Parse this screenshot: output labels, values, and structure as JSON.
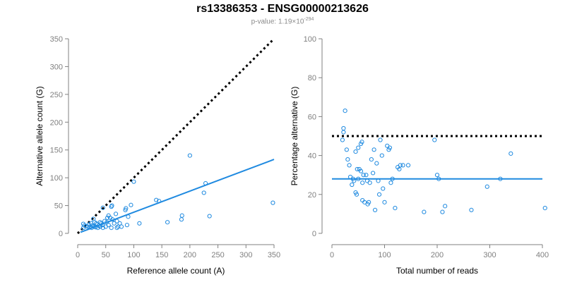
{
  "header": {
    "title": "rs13386353 - ENSG00000213626",
    "pvalue_prefix": "p-value: 1.19×10",
    "pvalue_exponent": "-294"
  },
  "colors": {
    "points": "#1f8ae0",
    "fit_line": "#1f8ae0",
    "reference_line": "#000000",
    "axis": "#808080"
  },
  "chart_data": [
    {
      "type": "scatter",
      "title": "",
      "xlabel": "Reference allele count (A)",
      "ylabel": "Alternative allele count (G)",
      "xlim": [
        0,
        350
      ],
      "ylim": [
        0,
        350
      ],
      "xticks": [
        0,
        50,
        100,
        150,
        200,
        250,
        300,
        350
      ],
      "yticks": [
        0,
        50,
        100,
        150,
        200,
        250,
        300,
        350
      ],
      "grid": false,
      "reference_line": {
        "style": "dotted",
        "from": [
          0,
          0
        ],
        "to": [
          350,
          350
        ]
      },
      "fit_line": {
        "from": [
          5,
          2
        ],
        "to": [
          350,
          133
        ]
      },
      "points": [
        [
          10,
          10
        ],
        [
          12,
          14
        ],
        [
          15,
          13
        ],
        [
          18,
          12
        ],
        [
          20,
          16
        ],
        [
          22,
          11
        ],
        [
          24,
          18
        ],
        [
          25,
          10
        ],
        [
          26,
          14
        ],
        [
          28,
          13
        ],
        [
          30,
          12
        ],
        [
          30,
          20
        ],
        [
          32,
          11
        ],
        [
          33,
          18
        ],
        [
          35,
          16
        ],
        [
          36,
          10
        ],
        [
          38,
          14
        ],
        [
          40,
          12
        ],
        [
          40,
          20
        ],
        [
          42,
          18
        ],
        [
          44,
          15
        ],
        [
          45,
          10
        ],
        [
          45,
          46
        ],
        [
          48,
          22
        ],
        [
          50,
          12
        ],
        [
          52,
          20
        ],
        [
          53,
          28
        ],
        [
          55,
          32
        ],
        [
          55,
          15
        ],
        [
          58,
          28
        ],
        [
          60,
          10
        ],
        [
          60,
          48
        ],
        [
          61,
          50
        ],
        [
          62,
          25
        ],
        [
          65,
          18
        ],
        [
          68,
          35
        ],
        [
          70,
          22
        ],
        [
          70,
          10
        ],
        [
          72,
          12
        ],
        [
          75,
          18
        ],
        [
          78,
          12
        ],
        [
          85,
          42
        ],
        [
          86,
          45
        ],
        [
          88,
          15
        ],
        [
          90,
          30
        ],
        [
          95,
          51
        ],
        [
          100,
          93
        ],
        [
          110,
          18
        ],
        [
          140,
          60
        ],
        [
          145,
          58
        ],
        [
          160,
          20
        ],
        [
          185,
          25
        ],
        [
          186,
          32
        ],
        [
          200,
          140
        ],
        [
          225,
          73
        ],
        [
          228,
          90
        ],
        [
          235,
          31
        ],
        [
          348,
          55
        ],
        [
          10,
          17
        ],
        [
          28,
          26
        ]
      ]
    },
    {
      "type": "scatter",
      "title": "",
      "xlabel": "Total number of reads",
      "ylabel": "Percentage alternative (G)",
      "xlim": [
        0,
        400
      ],
      "ylim": [
        0,
        100
      ],
      "xticks": [
        0,
        100,
        200,
        300,
        400
      ],
      "yticks": [
        0,
        20,
        40,
        60,
        80,
        100
      ],
      "grid": false,
      "reference_line": {
        "style": "dotted",
        "y": 50
      },
      "fit_line": {
        "y": 28
      },
      "points": [
        [
          20,
          48
        ],
        [
          22,
          52
        ],
        [
          22,
          54
        ],
        [
          25,
          63
        ],
        [
          28,
          43
        ],
        [
          30,
          38
        ],
        [
          33,
          35
        ],
        [
          35,
          29
        ],
        [
          38,
          25
        ],
        [
          40,
          28
        ],
        [
          42,
          27
        ],
        [
          45,
          42
        ],
        [
          45,
          21
        ],
        [
          47,
          20
        ],
        [
          48,
          33
        ],
        [
          50,
          44
        ],
        [
          50,
          28
        ],
        [
          52,
          33
        ],
        [
          55,
          32
        ],
        [
          55,
          46
        ],
        [
          57,
          47
        ],
        [
          58,
          26
        ],
        [
          58,
          17
        ],
        [
          60,
          30
        ],
        [
          62,
          16
        ],
        [
          65,
          30
        ],
        [
          67,
          27
        ],
        [
          68,
          15
        ],
        [
          70,
          16
        ],
        [
          72,
          26
        ],
        [
          75,
          38
        ],
        [
          78,
          31
        ],
        [
          80,
          43
        ],
        [
          82,
          12
        ],
        [
          85,
          36
        ],
        [
          88,
          27
        ],
        [
          90,
          20
        ],
        [
          92,
          48
        ],
        [
          95,
          40
        ],
        [
          97,
          23
        ],
        [
          100,
          16
        ],
        [
          105,
          45
        ],
        [
          108,
          43
        ],
        [
          110,
          44
        ],
        [
          112,
          26
        ],
        [
          115,
          28
        ],
        [
          120,
          13
        ],
        [
          125,
          34
        ],
        [
          128,
          33
        ],
        [
          130,
          35
        ],
        [
          135,
          35
        ],
        [
          145,
          35
        ],
        [
          175,
          11
        ],
        [
          195,
          48
        ],
        [
          200,
          30
        ],
        [
          203,
          28
        ],
        [
          210,
          11
        ],
        [
          215,
          14
        ],
        [
          265,
          12
        ],
        [
          295,
          24
        ],
        [
          320,
          28
        ],
        [
          340,
          41
        ],
        [
          405,
          13
        ]
      ]
    }
  ]
}
